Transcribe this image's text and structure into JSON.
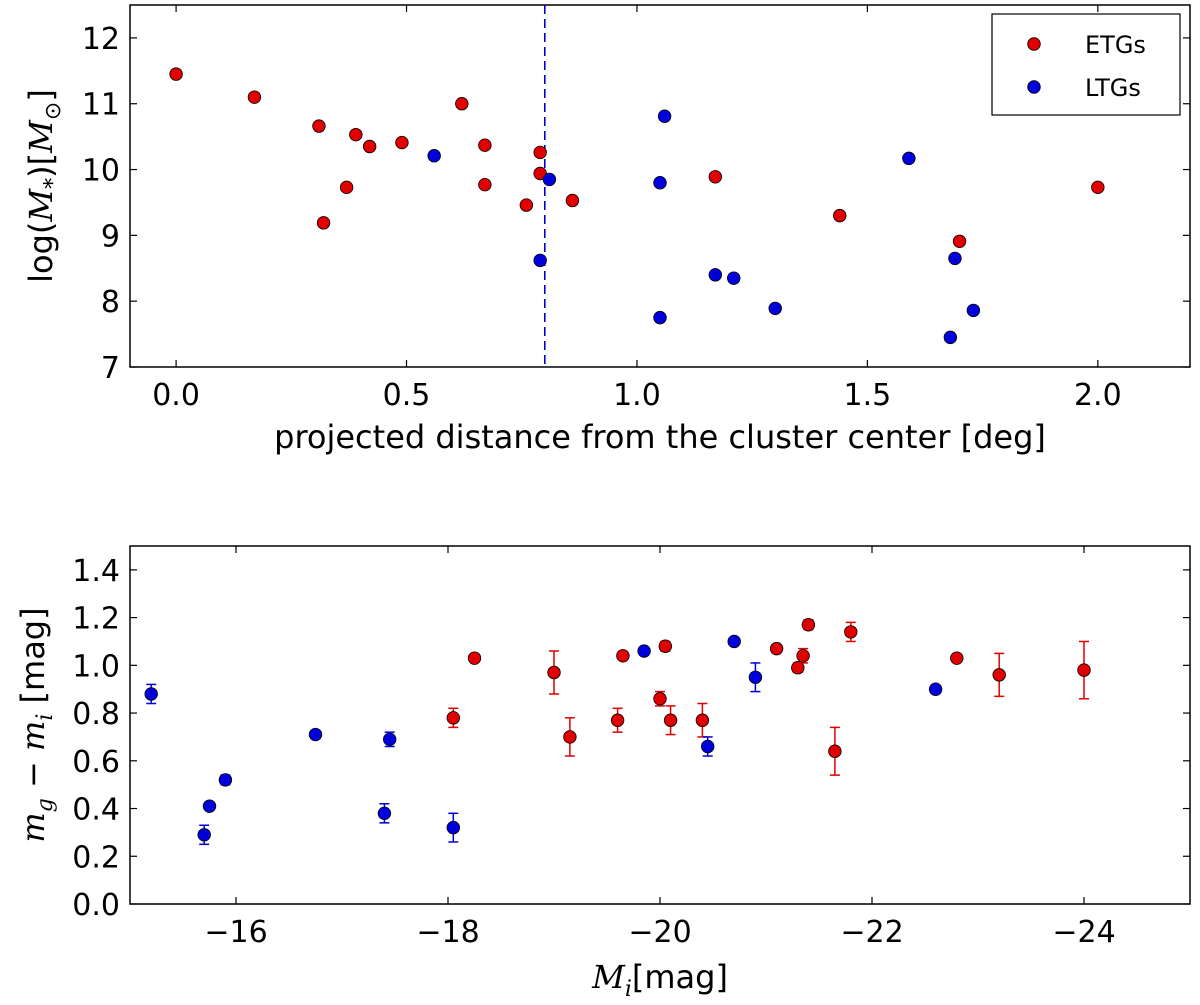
{
  "chart_data": [
    {
      "type": "scatter",
      "xlabel": "projected distance from the cluster center [deg]",
      "ylabel": "log(M*)[M⊙]",
      "ylabel_parts": {
        "pre": "log(",
        "sym": "M",
        "sub": "*",
        "mid": ")[",
        "sym2": "M",
        "sub2": "⊙",
        "post": "]"
      },
      "xlim": [
        -0.1,
        2.2
      ],
      "ylim": [
        7,
        12.5
      ],
      "xticks": [
        0.0,
        0.5,
        1.0,
        1.5,
        2.0
      ],
      "xtick_labels": [
        "0.0",
        "0.5",
        "1.0",
        "1.5",
        "2.0"
      ],
      "yticks": [
        7,
        8,
        9,
        10,
        11,
        12
      ],
      "ytick_labels": [
        "7",
        "8",
        "9",
        "10",
        "11",
        "12"
      ],
      "vline": {
        "x": 0.8,
        "color": "#0000cc",
        "style": "dashed"
      },
      "legend": {
        "position": "top-right",
        "entries": [
          {
            "label": "ETGs",
            "color": "#e00000"
          },
          {
            "label": "LTGs",
            "color": "#0000dd"
          }
        ]
      },
      "series": [
        {
          "name": "ETGs",
          "color": "#e00000",
          "points": [
            [
              0.0,
              11.45
            ],
            [
              0.17,
              11.1
            ],
            [
              0.31,
              10.66
            ],
            [
              0.32,
              9.19
            ],
            [
              0.37,
              9.73
            ],
            [
              0.39,
              10.53
            ],
            [
              0.42,
              10.35
            ],
            [
              0.49,
              10.41
            ],
            [
              0.62,
              11.0
            ],
            [
              0.67,
              10.37
            ],
            [
              0.67,
              9.77
            ],
            [
              0.76,
              9.46
            ],
            [
              0.79,
              10.26
            ],
            [
              0.79,
              9.94
            ],
            [
              0.86,
              9.53
            ],
            [
              1.17,
              9.89
            ],
            [
              1.44,
              9.3
            ],
            [
              1.7,
              8.91
            ],
            [
              2.0,
              9.73
            ]
          ]
        },
        {
          "name": "LTGs",
          "color": "#0000dd",
          "points": [
            [
              0.56,
              10.21
            ],
            [
              0.79,
              8.62
            ],
            [
              0.81,
              9.85
            ],
            [
              1.05,
              9.8
            ],
            [
              1.05,
              7.75
            ],
            [
              1.06,
              10.81
            ],
            [
              1.17,
              8.4
            ],
            [
              1.21,
              8.35
            ],
            [
              1.3,
              7.89
            ],
            [
              1.59,
              10.17
            ],
            [
              1.68,
              7.45
            ],
            [
              1.69,
              8.65
            ],
            [
              1.73,
              7.86
            ]
          ]
        }
      ]
    },
    {
      "type": "scatter",
      "xlabel": "Mi[mag]",
      "xlabel_parts": {
        "sym": "M",
        "sub": "i",
        "post": "[mag]"
      },
      "ylabel": "mg − mi [mag]",
      "ylabel_parts": {
        "sym": "m",
        "sub": "g",
        "op": " − ",
        "sym2": "m",
        "sub2": "i",
        "post": " [mag]"
      },
      "xlim": [
        -15,
        -25
      ],
      "ylim": [
        0,
        1.5
      ],
      "xticks": [
        -16,
        -18,
        -20,
        -22,
        -24
      ],
      "xtick_labels": [
        "−16",
        "−18",
        "−20",
        "−22",
        "−24"
      ],
      "yticks": [
        0.0,
        0.2,
        0.4,
        0.6,
        0.8,
        1.0,
        1.2,
        1.4
      ],
      "ytick_labels": [
        "0.0",
        "0.2",
        "0.4",
        "0.6",
        "0.8",
        "1.0",
        "1.2",
        "1.4"
      ],
      "series": [
        {
          "name": "ETGs",
          "color": "#e00000",
          "points": [
            [
              -18.05,
              0.78,
              0.04
            ],
            [
              -18.25,
              1.03,
              0.01
            ],
            [
              -19.0,
              0.97,
              0.09
            ],
            [
              -19.15,
              0.7,
              0.08
            ],
            [
              -19.6,
              0.77,
              0.05
            ],
            [
              -19.65,
              1.04,
              0.01
            ],
            [
              -20.0,
              0.86,
              0.03
            ],
            [
              -20.05,
              1.08,
              0.02
            ],
            [
              -20.1,
              0.77,
              0.06
            ],
            [
              -20.4,
              0.77,
              0.07
            ],
            [
              -21.1,
              1.07,
              0.01
            ],
            [
              -21.3,
              0.99,
              0.02
            ],
            [
              -21.35,
              1.04,
              0.03
            ],
            [
              -21.4,
              1.17,
              0.02
            ],
            [
              -21.65,
              0.64,
              0.1
            ],
            [
              -21.8,
              1.14,
              0.04
            ],
            [
              -22.8,
              1.03,
              0.01
            ],
            [
              -23.2,
              0.96,
              0.09
            ],
            [
              -24.0,
              0.98,
              0.12
            ]
          ]
        },
        {
          "name": "LTGs",
          "color": "#0000dd",
          "points": [
            [
              -15.2,
              0.88,
              0.04
            ],
            [
              -15.7,
              0.29,
              0.04
            ],
            [
              -15.75,
              0.41,
              0.01
            ],
            [
              -15.9,
              0.52,
              0.02
            ],
            [
              -16.75,
              0.71,
              0.01
            ],
            [
              -17.4,
              0.38,
              0.04
            ],
            [
              -17.45,
              0.69,
              0.03
            ],
            [
              -18.05,
              0.32,
              0.06
            ],
            [
              -19.85,
              1.06,
              0.01
            ],
            [
              -20.45,
              0.66,
              0.04
            ],
            [
              -20.7,
              1.1,
              0.01
            ],
            [
              -20.9,
              0.95,
              0.06
            ],
            [
              -22.6,
              0.9,
              0.01
            ]
          ]
        }
      ]
    }
  ]
}
